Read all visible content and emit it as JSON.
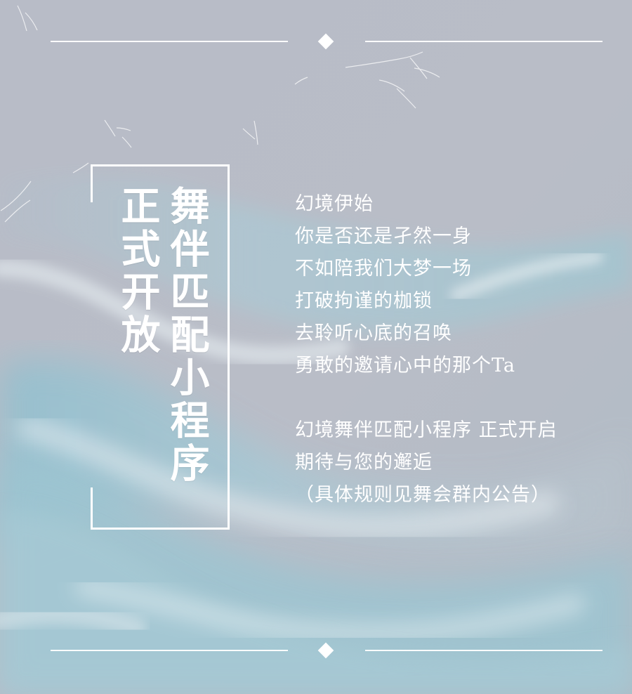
{
  "page": {
    "title_right": "舞伴匹配小程序",
    "title_left": "正式开放"
  },
  "poem": {
    "lines": [
      "幻境伊始",
      "你是否还是孑然一身",
      "不如陪我们大梦一场",
      "打破拘谨的枷锁",
      "去聆听心底的召唤",
      "勇敢的邀请心中的那个Ta",
      "",
      "幻境舞伴匹配小程序  正式开启",
      "期待与您的邂逅",
      "（具体规则见舞会群内公告）"
    ]
  },
  "colors": {
    "background": "#b9bcc7",
    "sky_blue": "#a8cad6",
    "white": "#ffffff"
  }
}
